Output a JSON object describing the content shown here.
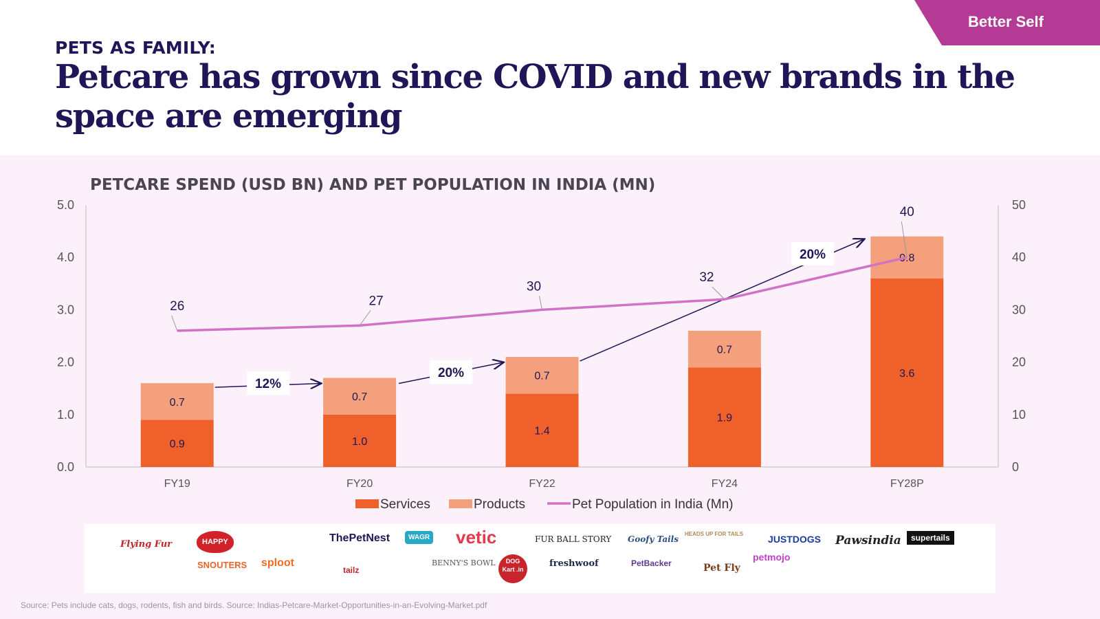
{
  "header": {
    "tag": "Better Self",
    "kicker": "PETS AS FAMILY:",
    "headline": "Petcare has grown since COVID and new brands in the space are emerging"
  },
  "colors": {
    "services": "#f0602a",
    "products": "#f4a07c",
    "population": "#d272c6",
    "navy": "#1e1656",
    "tag": "#b53a95",
    "panel": "#fcf0fa"
  },
  "chart_data": {
    "type": "bar",
    "stacked": true,
    "title": "PETCARE SPEND (USD BN) AND PET POPULATION IN INDIA (MN)",
    "categories": [
      "FY19",
      "FY20",
      "FY22",
      "FY24",
      "FY28P"
    ],
    "series": [
      {
        "name": "Services",
        "values": [
          0.9,
          1.0,
          1.4,
          1.9,
          3.6
        ],
        "labels": [
          "0.9",
          "1.0",
          "1.4",
          "1.9",
          "3.6"
        ]
      },
      {
        "name": "Products",
        "values": [
          0.7,
          0.7,
          0.7,
          0.7,
          0.8
        ],
        "labels": [
          "0.7",
          "0.7",
          "0.7",
          "0.7",
          "0.8"
        ]
      }
    ],
    "line_series": {
      "name": "Pet Population in India (Mn)",
      "values": [
        26,
        27,
        30,
        32,
        40
      ],
      "axis": "right"
    },
    "y_left": {
      "range": [
        0,
        5
      ],
      "ticks": [
        "0.0",
        "1.0",
        "2.0",
        "3.0",
        "4.0",
        "5.0"
      ]
    },
    "y_right": {
      "range": [
        0,
        50
      ],
      "ticks": [
        "0",
        "10",
        "20",
        "30",
        "40",
        "50"
      ]
    },
    "cagr_labels": [
      "12%",
      "20%",
      "20%"
    ],
    "legend": [
      "Services",
      "Products",
      "Pet Population in India (Mn)"
    ],
    "legend_placement": "bottom-center",
    "grid": false
  },
  "brands": [
    "Flying Fur",
    "HAPPY",
    "ThePetNest",
    "WAGR",
    "vetic",
    "FUR BALL STORY",
    "Goofy Tails",
    "HEADS UP FOR TAILS",
    "JUSTDOGS",
    "Pawsindia",
    "supertails",
    "SNOUTERS",
    "sploot",
    "tailz",
    "BENNY'S BOWL",
    "DOG Kart .in",
    "freshwoof",
    "PetBacker",
    "Pet Fly",
    "petmojo"
  ],
  "source": "Source: Pets include cats, dogs, rodents, fish and birds. Source: Indias-Petcare-Market-Opportunities-in-an-Evolving-Market.pdf"
}
